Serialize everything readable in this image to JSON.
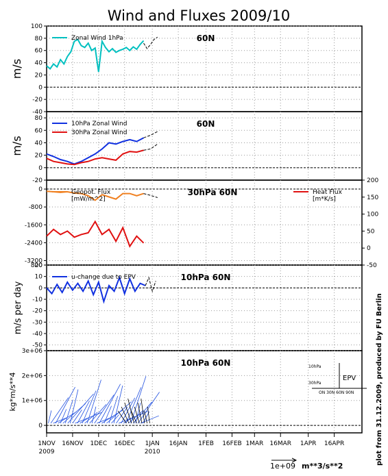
{
  "figure": {
    "title": "Wind and Fluxes 2009/10",
    "credit": "plot from 31.12.2009, produced by FU Berlin",
    "x_ticks": [
      "1NOV",
      "16NOV",
      "1DEC",
      "16DEC",
      "1JAN",
      "16JAN",
      "1FEB",
      "16FEB",
      "1MAR",
      "16MAR",
      "1APR",
      "16APR"
    ],
    "x_year_labels": [
      "2009",
      "2010"
    ],
    "arrow_scale_label": "1e+09",
    "arrow_scale_unit": "m**3/s**2"
  },
  "chart_data": [
    {
      "type": "line",
      "panel": "zonal-wind-1hpa",
      "label": "60N",
      "ylabel": "m/s",
      "ylim": [
        -40,
        100
      ],
      "yticks": [
        "100",
        "80",
        "60",
        "40",
        "20",
        "0",
        "-20",
        "-40"
      ],
      "xlim_days": [
        0,
        182
      ],
      "grid": true,
      "series": [
        {
          "name": "Zonal Wind 1hPa",
          "color": "#00c0c0",
          "x": [
            0,
            2,
            4,
            6,
            8,
            10,
            12,
            14,
            16,
            18,
            20,
            22,
            24,
            26,
            28,
            30,
            32,
            34,
            36,
            38,
            40,
            42,
            44,
            46,
            48,
            50,
            52,
            54,
            56
          ],
          "y": [
            35,
            30,
            38,
            33,
            45,
            38,
            50,
            58,
            75,
            78,
            68,
            65,
            72,
            60,
            64,
            25,
            75,
            65,
            58,
            63,
            57,
            60,
            62,
            65,
            60,
            66,
            62,
            70,
            76
          ]
        },
        {
          "name": "forecast",
          "color": "#000000",
          "x": [
            56,
            58,
            60,
            62,
            64
          ],
          "y": [
            72,
            63,
            70,
            78,
            82
          ]
        }
      ]
    },
    {
      "type": "line",
      "panel": "zonal-wind-10-30hpa",
      "label": "60N",
      "ylabel": "m/s",
      "ylim": [
        -20,
        90
      ],
      "yticks": [
        "80",
        "60",
        "40",
        "20",
        "0",
        "-20"
      ],
      "grid": true,
      "series": [
        {
          "name": "10hPa Zonal Wind",
          "color": "#1030e0",
          "x": [
            0,
            4,
            8,
            12,
            16,
            20,
            24,
            28,
            32,
            36,
            40,
            44,
            48,
            52,
            56
          ],
          "y": [
            22,
            18,
            13,
            10,
            6,
            10,
            16,
            22,
            30,
            40,
            38,
            42,
            45,
            42,
            48
          ]
        },
        {
          "name": "30hPa Zonal Wind",
          "color": "#e01010",
          "x": [
            0,
            4,
            8,
            12,
            16,
            20,
            24,
            28,
            32,
            36,
            40,
            44,
            48,
            52,
            56
          ],
          "y": [
            15,
            10,
            8,
            6,
            5,
            8,
            10,
            14,
            16,
            14,
            12,
            22,
            26,
            25,
            28
          ]
        },
        {
          "name": "forecast-10",
          "color": "#000000",
          "x": [
            56,
            60,
            64
          ],
          "y": [
            48,
            52,
            58
          ]
        },
        {
          "name": "forecast-30",
          "color": "#000000",
          "x": [
            56,
            60,
            64
          ],
          "y": [
            28,
            30,
            38
          ]
        }
      ]
    },
    {
      "type": "line",
      "panel": "fluxes-30hpa",
      "label": "30hPa 60N",
      "ylim_left": [
        -3400,
        400
      ],
      "yticks_left": [
        "-3200",
        "-2400",
        "-1600",
        "-800",
        "0"
      ],
      "ylim_right": [
        -50,
        200
      ],
      "yticks_right": [
        "200",
        "150",
        "100",
        "50",
        "0",
        "-50"
      ],
      "grid": true,
      "series": [
        {
          "name": "Geopot. Flux",
          "unit": "[mW/m^2]",
          "color": "#f08020",
          "x": [
            0,
            4,
            8,
            12,
            16,
            20,
            24,
            28,
            32,
            36,
            40,
            44,
            48,
            52,
            56
          ],
          "y": [
            -100,
            -120,
            -150,
            -120,
            -180,
            -200,
            -300,
            -500,
            -250,
            -350,
            -450,
            -200,
            -200,
            -300,
            -200
          ]
        },
        {
          "name": "Heat Flux",
          "unit": "[m*K/s]",
          "color": "#e01010",
          "axis": "right",
          "x": [
            0,
            4,
            8,
            12,
            16,
            20,
            24,
            28,
            32,
            36,
            40,
            44,
            48,
            52,
            56
          ],
          "y": [
            35,
            55,
            40,
            50,
            32,
            40,
            45,
            78,
            40,
            55,
            20,
            60,
            5,
            35,
            15
          ]
        },
        {
          "name": "forecast",
          "color": "#000000",
          "x": [
            56,
            60,
            64
          ],
          "y": [
            -200,
            -280,
            -380
          ]
        }
      ]
    },
    {
      "type": "line",
      "panel": "u-change-epv",
      "label": "10hPa 60N",
      "ylabel": "m/s per day",
      "ylim": [
        -55,
        20
      ],
      "yticks": [
        "20",
        "10",
        "0",
        "-10",
        "-20",
        "-30",
        "-40",
        "-50"
      ],
      "top_extra_tick": "800",
      "grid": true,
      "series": [
        {
          "name": "u-change due to EPV",
          "color": "#1030e0",
          "x": [
            0,
            3,
            6,
            9,
            12,
            15,
            18,
            21,
            24,
            27,
            30,
            33,
            36,
            39,
            42,
            45,
            48,
            51,
            54,
            57
          ],
          "y": [
            0,
            -5,
            3,
            -4,
            5,
            -2,
            4,
            -3,
            6,
            -6,
            5,
            -12,
            2,
            -3,
            9,
            -5,
            8,
            -3,
            4,
            2
          ]
        },
        {
          "name": "forecast",
          "color": "#000000",
          "x": [
            57,
            59,
            61,
            63
          ],
          "y": [
            2,
            9,
            -3,
            6
          ]
        }
      ]
    },
    {
      "type": "scatter",
      "panel": "epv-flux-arrows",
      "label": "10hPa 60N",
      "ylabel": "kg*m/s**4",
      "ylim": [
        -300000,
        3000000
      ],
      "yticks": [
        "3e+06",
        "2e+06",
        "1e+06",
        "0"
      ],
      "legend_box": {
        "title": "EPV",
        "y_labels": [
          "10hPa",
          "30hPa"
        ],
        "x_labels": "ON 30N 60N 90N"
      }
    }
  ]
}
